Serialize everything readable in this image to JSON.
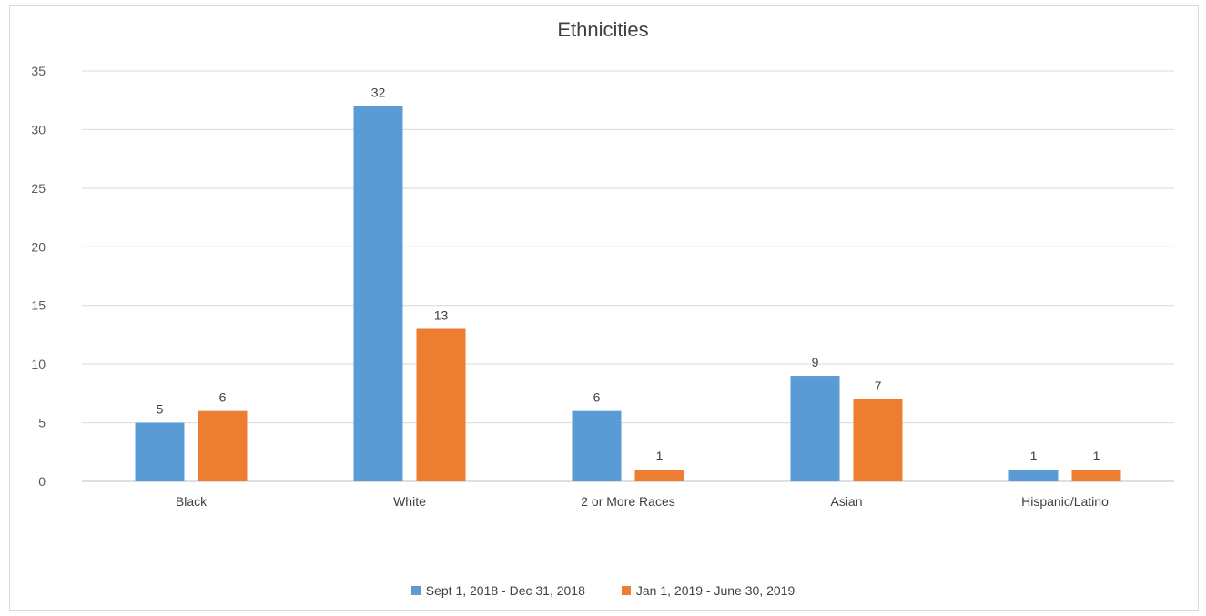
{
  "chart_data": {
    "type": "bar",
    "title": "Ethnicities",
    "categories": [
      "Black",
      "White",
      "2 or More Races",
      "Asian",
      "Hispanic/Latino"
    ],
    "series": [
      {
        "name": "Sept 1, 2018 - Dec 31, 2018",
        "color": "#5b9bd5",
        "values": [
          5,
          32,
          6,
          9,
          1
        ]
      },
      {
        "name": "Jan 1, 2019 - June 30, 2019",
        "color": "#ed7d31",
        "values": [
          6,
          13,
          1,
          7,
          1
        ]
      }
    ],
    "yticks": [
      "0",
      "5",
      "10",
      "15",
      "20",
      "25",
      "30",
      "35"
    ],
    "ylim": [
      0,
      35
    ],
    "grid": true,
    "legend_position": "bottom",
    "data_labels": true
  }
}
